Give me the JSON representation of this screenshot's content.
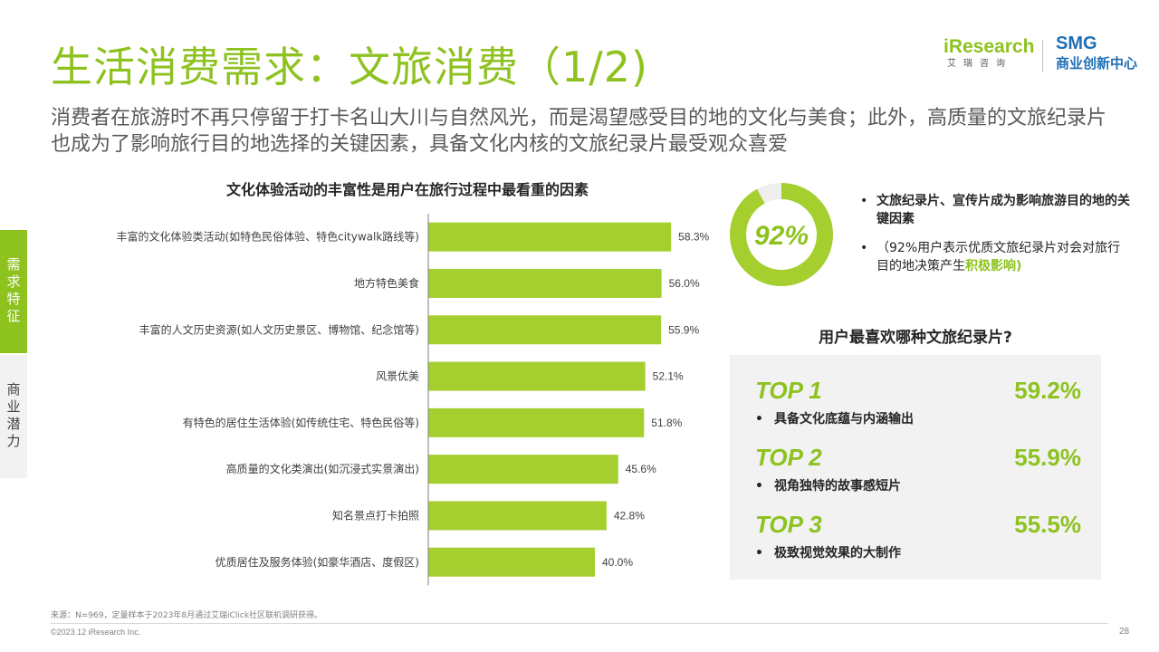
{
  "header": {
    "title": "生活消费需求：文旅消费（1/2)",
    "subtitle": "消费者在旅游时不再只停留于打卡名山大川与自然风光，而是渴望感受目的地的文化与美食；此外，高质量的文旅纪录片也成为了影响旅行目的地选择的关键因素，具备文化内核的文旅纪录片最受观众喜爱"
  },
  "logos": {
    "iresearch_mark": "iResearch",
    "iresearch_sub": "艾瑞咨询",
    "smg_mark": "SMG",
    "smg_sub": "商业创新中心"
  },
  "side_nav": [
    {
      "label": "需求特征",
      "active": true
    },
    {
      "label": "商业潜力",
      "active": false
    }
  ],
  "chart_data": {
    "type": "bar",
    "orientation": "horizontal",
    "title": "文化体验活动的丰富性是用户在旅行过程中最看重的因素",
    "categories": [
      "丰富的文化体验类活动(如特色民俗体验、特色citywalk路线等)",
      "地方特色美食",
      "丰富的人文历史资源(如人文历史景区、博物馆、纪念馆等)",
      "风景优美",
      "有特色的居住生活体验(如传统住宅、特色民俗等)",
      "高质量的文化类演出(如沉浸式实景演出)",
      "知名景点打卡拍照",
      "优质居住及服务体验(如豪华酒店、度假区)"
    ],
    "values": [
      58.3,
      56.0,
      55.9,
      52.1,
      51.8,
      45.6,
      42.8,
      40.0
    ],
    "labels": [
      "58.3%",
      "56.0%",
      "55.9%",
      "52.1%",
      "51.8%",
      "45.6%",
      "42.8%",
      "40.0%"
    ],
    "xlim": [
      0,
      100
    ],
    "color": "#a5cf2f",
    "grid": false
  },
  "highlight": {
    "percent": 92,
    "percent_label": "92%",
    "bullet1": "文旅纪录片、宣传片成为影响旅游目的地的关键因素",
    "bullet2_prefix": "（92%用户表示优质文旅纪录片对会对旅行目的地决策产生",
    "bullet2_highlight": "积极影响)"
  },
  "ranking": {
    "title": "用户最喜欢哪种文旅纪录片?",
    "items": [
      {
        "rank": "TOP 1",
        "value": "59.2%",
        "label": "具备文化底蕴与内涵输出"
      },
      {
        "rank": "TOP 2",
        "value": "55.9%",
        "label": "视角独特的故事感短片"
      },
      {
        "rank": "TOP 3",
        "value": "55.5%",
        "label": "极致视觉效果的大制作"
      }
    ]
  },
  "footer": {
    "source": "来源：N=969，定量样本于2023年8月通过艾瑞iClick社区联机调研获得。",
    "copyright": "©2023.12 iResearch Inc.",
    "page": "28"
  },
  "colors": {
    "accent": "#8dc21f",
    "bar": "#a5cf2f",
    "donut_track": "#eeeeee",
    "panel": "#f2f2f2"
  }
}
